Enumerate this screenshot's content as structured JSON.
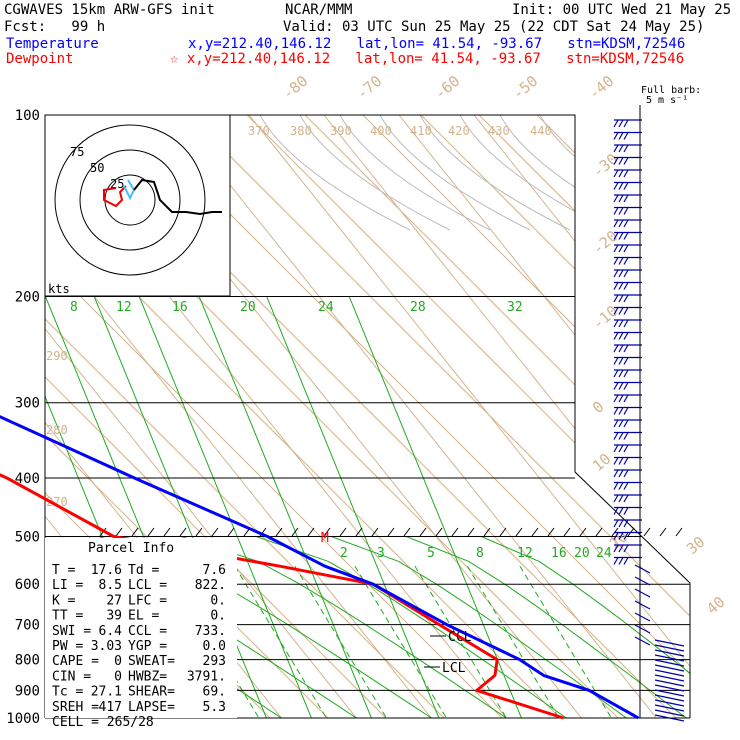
{
  "header": {
    "model": "CGWAVES 15km ARW-GFS init",
    "org": "NCAR/MMM",
    "init": "Init: 00 UTC Wed 21 May 25",
    "fcst": "Fcst:   99 h",
    "valid": "Valid: 03 UTC Sun 25 May 25 (22 CDT Sat 24 May 25)",
    "temp_label": "Temperature",
    "temp_info": "x,y=212.40,146.12   lat,lon= 41.54, -93.67   stn=KDSM,72546",
    "dew_label": "Dewpoint",
    "dew_info": "☆ x,y=212.40,146.12   lat,lon= 41.54, -93.67   stn=KDSM,72546",
    "temp_color": "#0000ff",
    "dew_color": "#ff0000",
    "full_barb": "Full barb:",
    "barb_units": "5 m s⁻¹"
  },
  "chart_data": {
    "type": "skew-t",
    "pressure_levels": [
      100,
      200,
      300,
      400,
      500,
      600,
      700,
      800,
      900,
      1000
    ],
    "isotherm_labels": [
      "-80",
      "-70",
      "-60",
      "-50",
      "-40",
      "-30",
      "-20",
      "-10",
      "0",
      "10",
      "20",
      "30",
      "40"
    ],
    "theta_labels": [
      "370",
      "380",
      "390",
      "400",
      "410",
      "420",
      "430",
      "440",
      "290",
      "280",
      "270"
    ],
    "mixing_ratio_upper": [
      "8",
      "12",
      "16",
      "20",
      "24",
      "28",
      "32"
    ],
    "mixing_ratio_lower": [
      "2",
      "3",
      "5",
      "8",
      "12",
      "16",
      "20",
      "24"
    ],
    "temperature": {
      "color": "#0000ff",
      "points": [
        [
          100,
          -63.5
        ],
        [
          150,
          -62
        ],
        [
          200,
          -53.5
        ],
        [
          300,
          -38
        ],
        [
          400,
          -24
        ],
        [
          500,
          -12.5
        ],
        [
          560,
          -8
        ],
        [
          600,
          -3.5
        ],
        [
          700,
          2
        ],
        [
          800,
          8
        ],
        [
          850,
          9.5
        ],
        [
          900,
          14
        ],
        [
          1000,
          17.6
        ]
      ]
    },
    "dewpoint": {
      "color": "#ff0000",
      "points": [
        [
          100,
          -78
        ],
        [
          150,
          -78.5
        ],
        [
          200,
          -72
        ],
        [
          300,
          -55
        ],
        [
          400,
          -41
        ],
        [
          500,
          -33
        ],
        [
          560,
          -14
        ],
        [
          600,
          -3.5
        ],
        [
          700,
          1
        ],
        [
          800,
          5
        ],
        [
          850,
          3
        ],
        [
          900,
          -1
        ],
        [
          1000,
          7.6
        ]
      ]
    },
    "parcel_info": {
      "title": "Parcel Info",
      "rows": [
        [
          "T   =",
          "17.6",
          "Td =",
          "7.6"
        ],
        [
          "LI  =",
          "8.5",
          "LCL =",
          "822."
        ],
        [
          "K   =",
          "27",
          "LFC =",
          "0."
        ],
        [
          "TT  =",
          "39",
          "EL  =",
          "0."
        ],
        [
          "SWI =",
          "6.4",
          "CCL =",
          "733."
        ],
        [
          "PW  =",
          "3.03",
          "YGP =",
          "0.0"
        ],
        [
          "CAPE =",
          "0",
          "SWEAT=",
          "293"
        ],
        [
          "CIN  =",
          "0",
          "HWBZ=",
          "3791."
        ],
        [
          "Tc  =",
          "27.1",
          "SHEAR=",
          "69."
        ],
        [
          "SREH =",
          "417",
          "LAPSE=",
          "5.3"
        ],
        [
          "CELL = 265/28",
          "",
          "",
          ""
        ]
      ]
    },
    "annotations": {
      "ccl": "CCL",
      "lcl": "LCL",
      "m_marker": "M",
      "kts": "kts"
    },
    "hodograph": {
      "ring_labels": [
        "75",
        "50",
        "25"
      ]
    }
  }
}
